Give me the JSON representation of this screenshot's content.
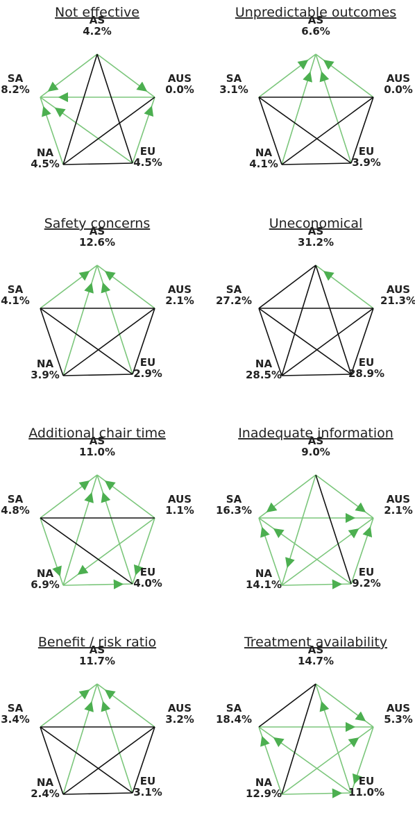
{
  "panels": [
    {
      "title": "Not effective",
      "nodes": [
        {
          "label": "AS",
          "value": "4.2%"
        },
        {
          "label": "AUS",
          "value": "0.0%"
        },
        {
          "label": "EU",
          "value": "4.5%"
        },
        {
          "label": "NA",
          "value": "4.5%"
        },
        {
          "label": "SA",
          "value": "8.2%"
        }
      ],
      "edges": [
        [
          0,
          4,
          "green"
        ],
        [
          1,
          4,
          "green"
        ],
        [
          2,
          4,
          "green"
        ],
        [
          3,
          4,
          "green"
        ],
        [
          2,
          1,
          "green"
        ],
        [
          0,
          1,
          "green"
        ],
        [
          0,
          3,
          "black"
        ],
        [
          0,
          2,
          "black"
        ],
        [
          1,
          3,
          "black"
        ],
        [
          2,
          3,
          "black"
        ]
      ]
    },
    {
      "title": "Unpredictable outcomes",
      "nodes": [
        {
          "label": "AS",
          "value": "6.6%"
        },
        {
          "label": "AUS",
          "value": "0.0%"
        },
        {
          "label": "EU",
          "value": "3.9%"
        },
        {
          "label": "NA",
          "value": "4.1%"
        },
        {
          "label": "SA",
          "value": "3.1%"
        }
      ],
      "edges": [
        [
          4,
          0,
          "green"
        ],
        [
          1,
          0,
          "green"
        ],
        [
          3,
          0,
          "green"
        ],
        [
          2,
          0,
          "green"
        ],
        [
          4,
          1,
          "black"
        ],
        [
          4,
          2,
          "black"
        ],
        [
          1,
          3,
          "black"
        ],
        [
          2,
          3,
          "black"
        ],
        [
          1,
          2,
          "black"
        ],
        [
          3,
          4,
          "black"
        ]
      ]
    },
    {
      "title": "Safety concerns",
      "nodes": [
        {
          "label": "AS",
          "value": "12.6%"
        },
        {
          "label": "AUS",
          "value": "2.1%"
        },
        {
          "label": "EU",
          "value": "2.9%"
        },
        {
          "label": "NA",
          "value": "3.9%"
        },
        {
          "label": "SA",
          "value": "4.1%"
        }
      ],
      "edges": [
        [
          4,
          0,
          "green"
        ],
        [
          1,
          0,
          "green"
        ],
        [
          3,
          0,
          "green"
        ],
        [
          2,
          0,
          "green"
        ],
        [
          4,
          1,
          "black"
        ],
        [
          4,
          2,
          "black"
        ],
        [
          1,
          3,
          "black"
        ],
        [
          2,
          3,
          "black"
        ],
        [
          1,
          2,
          "black"
        ],
        [
          3,
          4,
          "black"
        ]
      ]
    },
    {
      "title": "Uneconomical",
      "nodes": [
        {
          "label": "AS",
          "value": "31.2%"
        },
        {
          "label": "AUS",
          "value": "21.3%"
        },
        {
          "label": "EU",
          "value": "28.9%"
        },
        {
          "label": "NA",
          "value": "28.5%"
        },
        {
          "label": "SA",
          "value": "27.2%"
        }
      ],
      "edges": [
        [
          1,
          0,
          "green"
        ],
        [
          4,
          0,
          "black"
        ],
        [
          3,
          0,
          "black"
        ],
        [
          2,
          0,
          "black"
        ],
        [
          4,
          1,
          "black"
        ],
        [
          4,
          2,
          "black"
        ],
        [
          1,
          3,
          "black"
        ],
        [
          2,
          3,
          "black"
        ],
        [
          1,
          2,
          "black"
        ],
        [
          3,
          4,
          "black"
        ]
      ]
    },
    {
      "title": "Additional chair time",
      "nodes": [
        {
          "label": "AS",
          "value": "11.0%"
        },
        {
          "label": "AUS",
          "value": "1.1%"
        },
        {
          "label": "EU",
          "value": "4.0%"
        },
        {
          "label": "NA",
          "value": "6.9%"
        },
        {
          "label": "SA",
          "value": "4.8%"
        }
      ],
      "edges": [
        [
          4,
          0,
          "green"
        ],
        [
          1,
          0,
          "green"
        ],
        [
          3,
          0,
          "green"
        ],
        [
          2,
          0,
          "green"
        ],
        [
          1,
          3,
          "green"
        ],
        [
          4,
          3,
          "green"
        ],
        [
          1,
          2,
          "green"
        ],
        [
          3,
          2,
          "green"
        ],
        [
          4,
          1,
          "black"
        ],
        [
          4,
          2,
          "black"
        ]
      ]
    },
    {
      "title": "Inadequate information",
      "nodes": [
        {
          "label": "AS",
          "value": "9.0%"
        },
        {
          "label": "AUS",
          "value": "2.1%"
        },
        {
          "label": "EU",
          "value": "9.2%"
        },
        {
          "label": "NA",
          "value": "14.1%"
        },
        {
          "label": "SA",
          "value": "16.3%"
        }
      ],
      "edges": [
        [
          0,
          4,
          "green"
        ],
        [
          0,
          1,
          "green"
        ],
        [
          4,
          1,
          "green"
        ],
        [
          2,
          4,
          "green"
        ],
        [
          3,
          4,
          "green"
        ],
        [
          2,
          1,
          "green"
        ],
        [
          3,
          1,
          "green"
        ],
        [
          3,
          2,
          "green"
        ],
        [
          0,
          3,
          "green"
        ],
        [
          0,
          2,
          "black"
        ]
      ]
    },
    {
      "title": "Benefit / risk ratio",
      "nodes": [
        {
          "label": "AS",
          "value": "11.7%"
        },
        {
          "label": "AUS",
          "value": "3.2%"
        },
        {
          "label": "EU",
          "value": "3.1%"
        },
        {
          "label": "NA",
          "value": "2.4%"
        },
        {
          "label": "SA",
          "value": "3.4%"
        }
      ],
      "edges": [
        [
          4,
          0,
          "green"
        ],
        [
          1,
          0,
          "green"
        ],
        [
          3,
          0,
          "green"
        ],
        [
          2,
          0,
          "green"
        ],
        [
          4,
          1,
          "black"
        ],
        [
          4,
          2,
          "black"
        ],
        [
          1,
          3,
          "black"
        ],
        [
          2,
          3,
          "black"
        ],
        [
          1,
          2,
          "black"
        ],
        [
          3,
          4,
          "black"
        ]
      ]
    },
    {
      "title": "Treatment availability",
      "nodes": [
        {
          "label": "AS",
          "value": "14.7%"
        },
        {
          "label": "AUS",
          "value": "5.3%"
        },
        {
          "label": "EU",
          "value": "11.0%"
        },
        {
          "label": "NA",
          "value": "12.9%"
        },
        {
          "label": "SA",
          "value": "18.4%"
        }
      ],
      "edges": [
        [
          0,
          1,
          "green"
        ],
        [
          4,
          1,
          "green"
        ],
        [
          2,
          4,
          "green"
        ],
        [
          3,
          1,
          "green"
        ],
        [
          2,
          0,
          "green"
        ],
        [
          1,
          2,
          "green"
        ],
        [
          3,
          4,
          "green"
        ],
        [
          0,
          3,
          "black"
        ],
        [
          4,
          0,
          "black"
        ],
        [
          3,
          2,
          "green"
        ]
      ]
    }
  ]
}
